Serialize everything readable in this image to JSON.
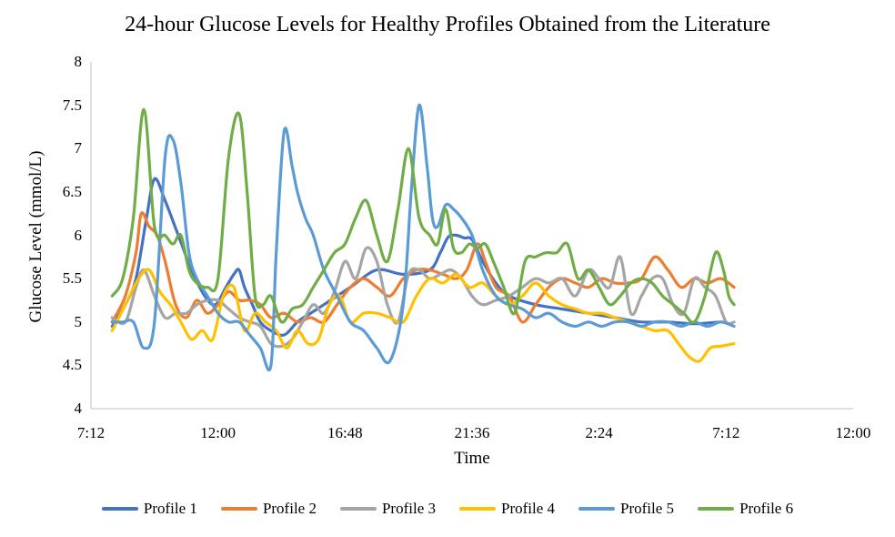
{
  "chart_data": {
    "type": "line",
    "title": "24-hour Glucose Levels for Healthy Profiles Obtained from the Literature",
    "xlabel": "Time",
    "ylabel": "Glucose Level (mmol/L)",
    "ylim": [
      4,
      8
    ],
    "y_ticks": [
      "4",
      "4.5",
      "5",
      "5.5",
      "6",
      "6.5",
      "7",
      "7.5",
      "8"
    ],
    "x_ticks": [
      "7:12",
      "12:00",
      "16:48",
      "21:36",
      "2:24",
      "7:12",
      "12:00"
    ],
    "x_range_hours": [
      7.2,
      36
    ],
    "x_tick_hours": [
      7.2,
      12,
      16.8,
      21.6,
      26.4,
      31.2,
      36
    ],
    "grid": false,
    "legend": "bottom",
    "series": [
      {
        "name": "Profile 1",
        "color": "#4472C4",
        "x": [
          8.0,
          8.5,
          8.9,
          9.3,
          9.6,
          10.0,
          10.5,
          11.0,
          11.5,
          11.9,
          12.3,
          12.6,
          12.8,
          13.0,
          13.3,
          13.6,
          14.0,
          14.5,
          15.0,
          15.5,
          16.0,
          17.0,
          18.0,
          19.0,
          20.0,
          20.4,
          20.7,
          21.0,
          21.3,
          21.6,
          22.0,
          22.5,
          23.0,
          24.0,
          25.0,
          26.0,
          27.0,
          28.0,
          29.0,
          30.0,
          31.0,
          31.3
        ],
        "y": [
          4.95,
          5.2,
          5.5,
          6.2,
          6.65,
          6.4,
          6.0,
          5.6,
          5.3,
          5.2,
          5.4,
          5.55,
          5.6,
          5.4,
          5.2,
          5.0,
          4.9,
          4.85,
          5.0,
          5.1,
          5.2,
          5.4,
          5.6,
          5.55,
          5.6,
          5.8,
          5.98,
          6.0,
          5.97,
          5.95,
          5.7,
          5.45,
          5.3,
          5.2,
          5.15,
          5.1,
          5.05,
          5.0,
          5.0,
          4.98,
          5.0,
          4.98
        ]
      },
      {
        "name": "Profile 2",
        "color": "#ED7D31",
        "x": [
          8.0,
          8.5,
          8.9,
          9.1,
          9.4,
          9.7,
          10.0,
          10.4,
          10.8,
          11.2,
          11.6,
          12.0,
          12.4,
          12.8,
          13.2,
          13.6,
          14.0,
          14.5,
          15.0,
          15.5,
          16.0,
          16.5,
          17.0,
          17.5,
          18.0,
          18.5,
          19.0,
          19.5,
          20.0,
          20.5,
          21.0,
          21.4,
          21.8,
          22.1,
          22.5,
          23.0,
          23.5,
          24.0,
          24.5,
          25.0,
          25.5,
          26.0,
          26.5,
          27.0,
          27.5,
          28.0,
          28.5,
          29.0,
          29.5,
          30.0,
          30.5,
          31.0,
          31.5
        ],
        "y": [
          5.0,
          5.3,
          5.8,
          6.25,
          6.1,
          6.0,
          5.7,
          5.2,
          5.05,
          5.25,
          5.1,
          5.2,
          5.35,
          5.25,
          5.25,
          5.2,
          5.05,
          5.1,
          5.0,
          5.05,
          5.0,
          5.2,
          5.4,
          5.5,
          5.4,
          5.3,
          5.5,
          5.6,
          5.6,
          5.55,
          5.5,
          5.6,
          5.9,
          5.7,
          5.4,
          5.3,
          5.0,
          5.2,
          5.4,
          5.5,
          5.45,
          5.4,
          5.5,
          5.45,
          5.45,
          5.5,
          5.75,
          5.6,
          5.4,
          5.5,
          5.45,
          5.5,
          5.4
        ]
      },
      {
        "name": "Profile 3",
        "color": "#A5A5A5",
        "x": [
          8.0,
          8.5,
          8.9,
          9.2,
          9.6,
          10.0,
          10.4,
          10.8,
          11.2,
          11.6,
          12.0,
          12.4,
          12.8,
          13.2,
          13.6,
          14.0,
          14.4,
          14.8,
          15.2,
          15.6,
          16.0,
          16.4,
          16.8,
          17.2,
          17.6,
          18.0,
          18.4,
          18.8,
          19.2,
          19.6,
          20.0,
          20.4,
          20.8,
          21.2,
          21.6,
          22.0,
          22.5,
          23.0,
          23.5,
          24.0,
          24.5,
          25.0,
          25.5,
          26.0,
          26.4,
          26.8,
          27.2,
          27.6,
          28.0,
          28.4,
          28.8,
          29.2,
          29.6,
          30.0,
          30.4,
          30.8,
          31.2,
          31.5
        ],
        "y": [
          5.05,
          5.0,
          5.4,
          5.6,
          5.3,
          5.05,
          5.1,
          5.1,
          5.2,
          5.25,
          5.25,
          5.15,
          5.05,
          5.0,
          4.95,
          4.75,
          4.72,
          4.8,
          5.0,
          5.2,
          5.1,
          5.35,
          5.7,
          5.5,
          5.85,
          5.7,
          5.2,
          5.0,
          5.55,
          5.6,
          5.5,
          5.55,
          5.6,
          5.5,
          5.3,
          5.2,
          5.25,
          5.3,
          5.4,
          5.5,
          5.45,
          5.5,
          5.3,
          5.6,
          5.5,
          5.4,
          5.75,
          5.1,
          5.3,
          5.5,
          5.5,
          5.2,
          5.1,
          5.5,
          5.4,
          5.3,
          5.0,
          5.0
        ]
      },
      {
        "name": "Profile 4",
        "color": "#FFC000",
        "x": [
          8.0,
          8.5,
          9.0,
          9.4,
          9.8,
          10.2,
          10.6,
          11.0,
          11.4,
          11.8,
          12.2,
          12.6,
          13.0,
          13.4,
          13.8,
          14.2,
          14.6,
          15.0,
          15.4,
          15.8,
          16.2,
          16.6,
          17.0,
          17.5,
          18.0,
          18.5,
          19.0,
          19.5,
          20.0,
          20.5,
          21.0,
          21.5,
          22.0,
          22.5,
          23.0,
          23.5,
          24.0,
          24.5,
          25.0,
          25.5,
          26.0,
          26.5,
          27.0,
          27.5,
          28.0,
          28.5,
          29.0,
          29.4,
          29.8,
          30.2,
          30.6,
          31.0,
          31.5
        ],
        "y": [
          4.9,
          5.2,
          5.5,
          5.6,
          5.35,
          5.2,
          5.0,
          4.8,
          4.9,
          4.8,
          5.3,
          5.4,
          4.9,
          5.1,
          5.0,
          4.9,
          4.7,
          4.9,
          4.75,
          4.8,
          5.2,
          5.3,
          5.0,
          5.1,
          5.1,
          5.05,
          5.0,
          5.3,
          5.5,
          5.45,
          5.55,
          5.4,
          5.45,
          5.3,
          5.2,
          5.3,
          5.45,
          5.3,
          5.2,
          5.15,
          5.1,
          5.1,
          5.05,
          5.0,
          4.95,
          4.9,
          4.9,
          4.75,
          4.6,
          4.55,
          4.7,
          4.72,
          4.75
        ]
      },
      {
        "name": "Profile 5",
        "color": "#5B9BD5",
        "x": [
          8.0,
          8.4,
          8.8,
          9.2,
          9.6,
          10.0,
          10.3,
          10.6,
          10.9,
          11.2,
          11.6,
          12.0,
          12.4,
          12.8,
          13.2,
          13.6,
          14.0,
          14.2,
          14.5,
          14.8,
          15.0,
          15.3,
          15.6,
          16.0,
          16.5,
          17.0,
          17.5,
          18.0,
          18.5,
          19.0,
          19.3,
          19.6,
          19.9,
          20.1,
          20.3,
          20.6,
          20.9,
          21.2,
          21.6,
          22.0,
          22.5,
          23.0,
          23.5,
          24.0,
          24.5,
          25.0,
          25.5,
          26.0,
          26.5,
          27.0,
          27.5,
          28.0,
          28.5,
          29.0,
          29.5,
          30.0,
          30.5,
          31.0,
          31.5
        ],
        "y": [
          5.0,
          5.0,
          5.0,
          4.7,
          5.0,
          6.9,
          7.1,
          6.6,
          5.8,
          5.5,
          5.3,
          5.1,
          5.0,
          5.0,
          4.85,
          4.7,
          4.5,
          5.8,
          7.2,
          6.8,
          6.5,
          6.2,
          6.0,
          5.6,
          5.3,
          5.0,
          4.9,
          4.7,
          4.55,
          5.2,
          6.5,
          7.5,
          6.8,
          6.2,
          6.1,
          6.35,
          6.3,
          6.2,
          6.0,
          5.6,
          5.3,
          5.2,
          5.15,
          5.05,
          5.1,
          5.0,
          4.95,
          5.0,
          4.95,
          5.0,
          5.0,
          4.95,
          5.0,
          5.0,
          4.95,
          5.0,
          4.95,
          5.0,
          4.95
        ]
      },
      {
        "name": "Profile 6",
        "color": "#70AD47",
        "x": [
          8.0,
          8.4,
          8.8,
          9.2,
          9.6,
          10.0,
          10.3,
          10.6,
          10.9,
          11.2,
          11.6,
          12.0,
          12.4,
          12.8,
          13.1,
          13.4,
          13.7,
          14.0,
          14.4,
          14.8,
          15.2,
          15.6,
          16.0,
          16.4,
          16.8,
          17.2,
          17.6,
          18.0,
          18.4,
          18.8,
          19.2,
          19.6,
          20.0,
          20.3,
          20.6,
          20.9,
          21.2,
          21.5,
          21.8,
          22.1,
          22.4,
          22.8,
          23.2,
          23.6,
          24.0,
          24.4,
          24.8,
          25.2,
          25.6,
          26.0,
          26.4,
          26.8,
          27.2,
          27.6,
          28.0,
          28.4,
          28.8,
          29.2,
          29.6,
          30.0,
          30.4,
          30.8,
          31.1,
          31.3,
          31.5
        ],
        "y": [
          5.3,
          5.5,
          6.2,
          7.45,
          6.1,
          6.0,
          5.9,
          6.0,
          5.6,
          5.45,
          5.4,
          5.5,
          6.9,
          7.4,
          6.5,
          5.3,
          5.2,
          5.3,
          5.0,
          5.15,
          5.2,
          5.4,
          5.6,
          5.8,
          5.9,
          6.2,
          6.4,
          6.0,
          5.7,
          6.3,
          7.0,
          6.2,
          6.0,
          5.9,
          6.3,
          5.85,
          5.8,
          5.9,
          5.85,
          5.9,
          5.7,
          5.4,
          5.1,
          5.7,
          5.75,
          5.8,
          5.8,
          5.9,
          5.5,
          5.6,
          5.4,
          5.2,
          5.3,
          5.45,
          5.5,
          5.45,
          5.3,
          5.2,
          5.1,
          5.0,
          5.3,
          5.8,
          5.6,
          5.3,
          5.2
        ]
      }
    ]
  }
}
